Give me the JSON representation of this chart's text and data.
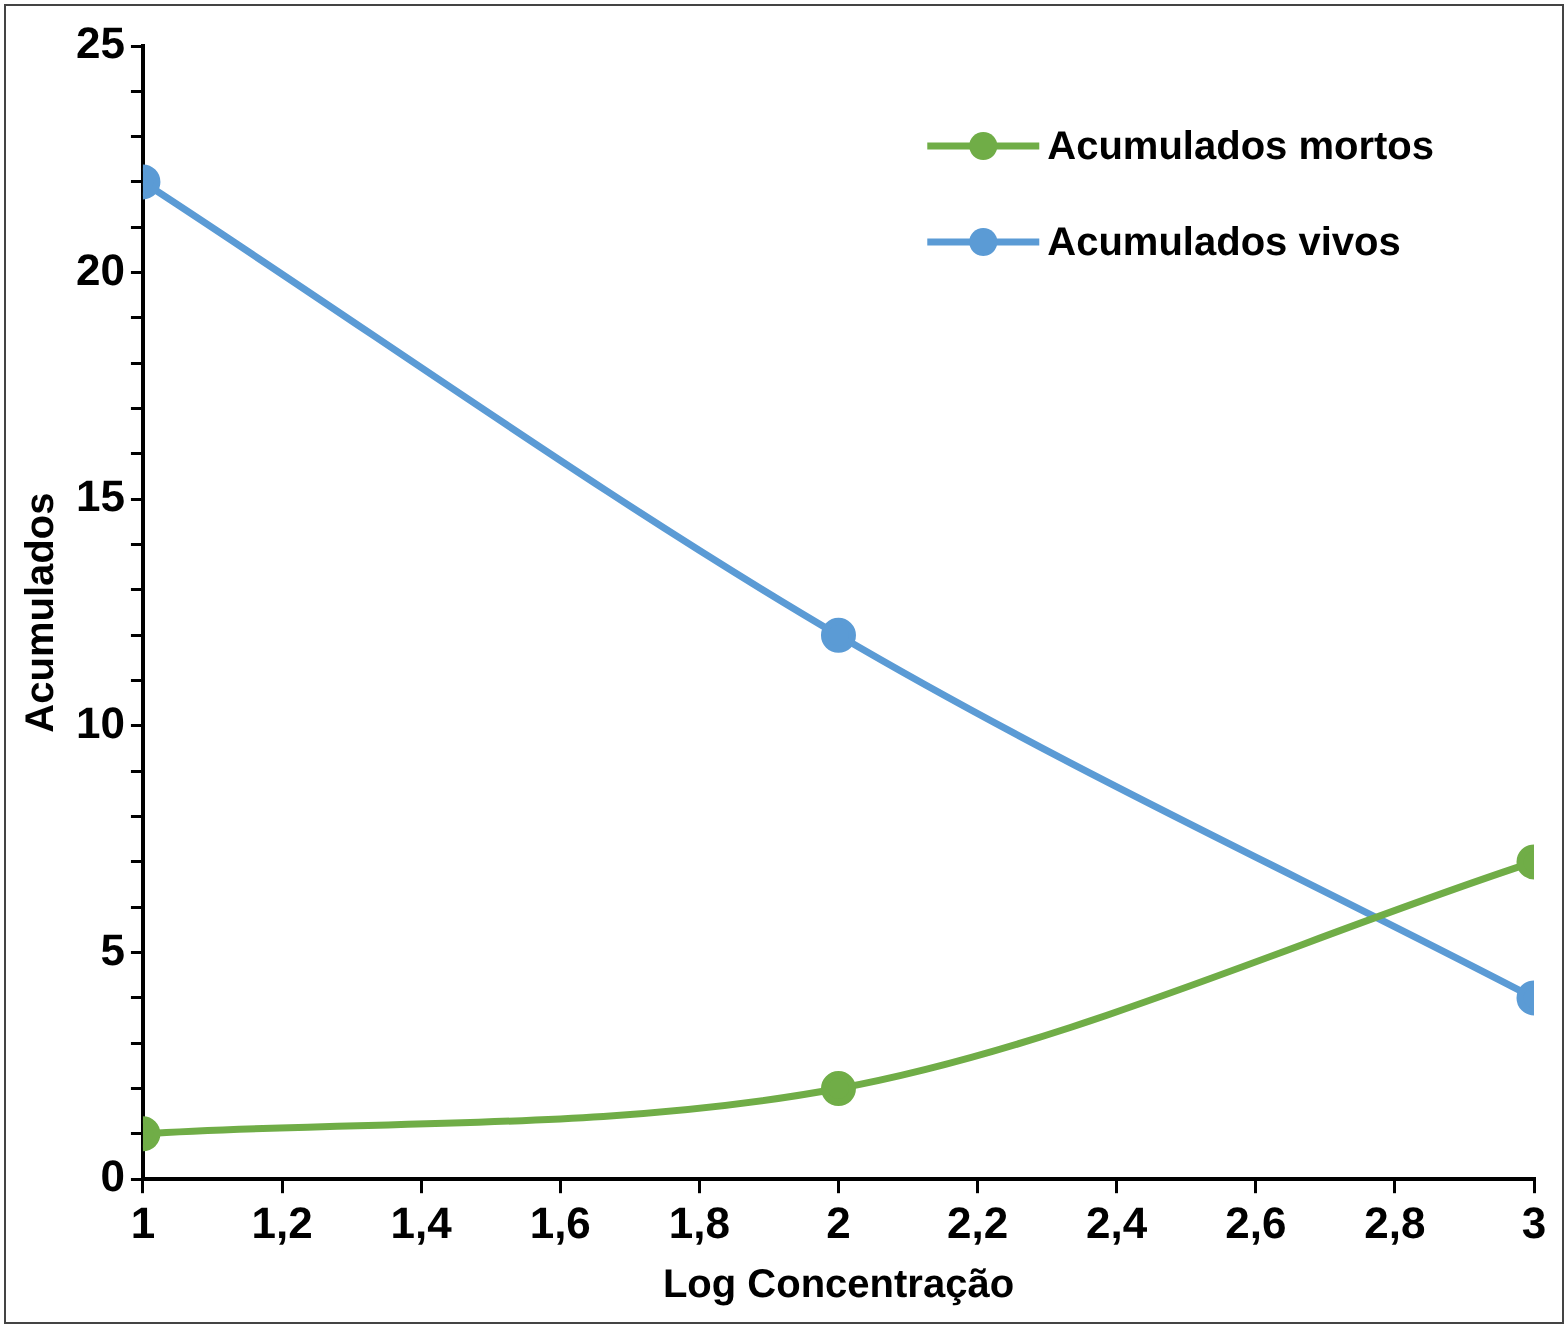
{
  "chart_data": {
    "type": "line",
    "xlabel": "Log Concentração",
    "ylabel": "Acumulados",
    "x": [
      1,
      2,
      3
    ],
    "series": [
      {
        "name": "Acumulados mortos",
        "color": "#70ad47",
        "values": [
          1,
          2,
          7
        ]
      },
      {
        "name": "Acumulados vivos",
        "color": "#5b9bd5",
        "values": [
          22,
          12,
          4
        ]
      }
    ],
    "xlim": [
      1,
      3
    ],
    "xticks": [
      1,
      {
        "value": 1.2,
        "label": "1,2"
      },
      {
        "value": 1.4,
        "label": "1,4"
      },
      {
        "value": 1.6,
        "label": "1,6"
      },
      {
        "value": 1.8,
        "label": "1,8"
      },
      2,
      {
        "value": 2.2,
        "label": "2,2"
      },
      {
        "value": 2.4,
        "label": "2,4"
      },
      {
        "value": 2.6,
        "label": "2,6"
      },
      {
        "value": 2.8,
        "label": "2,8"
      },
      3
    ],
    "ylim": [
      0,
      25
    ],
    "yticks": [
      0,
      {
        "value": 1,
        "label": null
      },
      {
        "value": 2,
        "label": null
      },
      {
        "value": 3,
        "label": null
      },
      {
        "value": 4,
        "label": null
      },
      5,
      {
        "value": 6,
        "label": null
      },
      {
        "value": 7,
        "label": null
      },
      {
        "value": 8,
        "label": null
      },
      {
        "value": 9,
        "label": null
      },
      10,
      {
        "value": 11,
        "label": null
      },
      {
        "value": 12,
        "label": null
      },
      {
        "value": 13,
        "label": null
      },
      {
        "value": 14,
        "label": null
      },
      15,
      {
        "value": 16,
        "label": null
      },
      {
        "value": 17,
        "label": null
      },
      {
        "value": 18,
        "label": null
      },
      {
        "value": 19,
        "label": null
      },
      20,
      {
        "value": 21,
        "label": null
      },
      {
        "value": 22,
        "label": null
      },
      {
        "value": 23,
        "label": null
      },
      {
        "value": 24,
        "label": null
      },
      25
    ],
    "grid": false,
    "legend": "top right",
    "marker": "circle",
    "line_style": "solid"
  }
}
